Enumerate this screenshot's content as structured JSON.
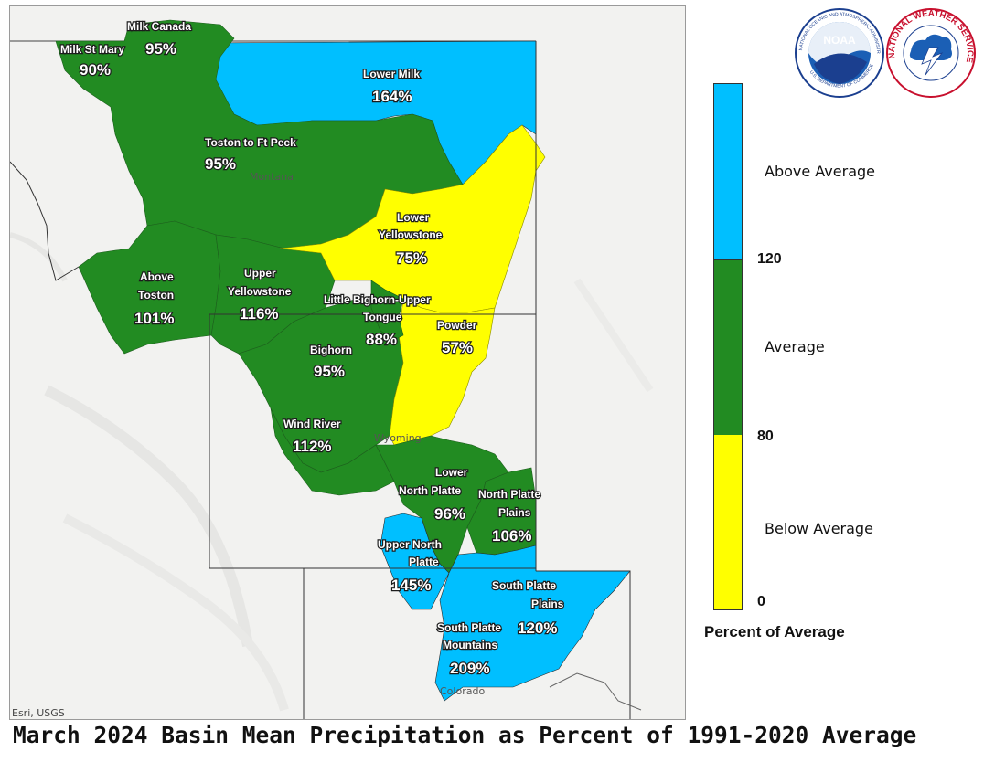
{
  "colors": {
    "above_average": "#00bfff",
    "average": "#228b22",
    "below_average": "#ffff00",
    "basemap": "#f1f1ef",
    "state_border": "#333333"
  },
  "basins": [
    {
      "id": "milk-canada",
      "name": "Milk Canada",
      "percent": "95%",
      "category": "average"
    },
    {
      "id": "milk-st-mary",
      "name": "Milk St Mary",
      "percent": "90%",
      "category": "average"
    },
    {
      "id": "lower-milk",
      "name": "Lower Milk",
      "percent": "164%",
      "category": "above_average"
    },
    {
      "id": "toston-to-ft-peck",
      "name": "Toston to Ft Peck",
      "percent": "95%",
      "category": "average"
    },
    {
      "id": "lower-yellowstone",
      "name": "Lower Yellowstone",
      "percent": "75%",
      "category": "below_average"
    },
    {
      "id": "above-toston",
      "name": "Above Toston",
      "percent": "101%",
      "category": "average"
    },
    {
      "id": "upper-yellowstone",
      "name": "Upper Yellowstone",
      "percent": "116%",
      "category": "average"
    },
    {
      "id": "little-bighorn-upper-tongue",
      "name": "Little Bighorn-Upper Tongue",
      "percent": "88%",
      "category": "average"
    },
    {
      "id": "powder",
      "name": "Powder",
      "percent": "57%",
      "category": "below_average"
    },
    {
      "id": "bighorn",
      "name": "Bighorn",
      "percent": "95%",
      "category": "average"
    },
    {
      "id": "wind-river",
      "name": "Wind River",
      "percent": "112%",
      "category": "average"
    },
    {
      "id": "lower-north-platte",
      "name": "Lower North Platte",
      "percent": "96%",
      "category": "average"
    },
    {
      "id": "north-platte-plains",
      "name": "North Platte Plains",
      "percent": "106%",
      "category": "average"
    },
    {
      "id": "upper-north-platte",
      "name": "Upper North Platte",
      "percent": "145%",
      "category": "above_average"
    },
    {
      "id": "south-platte-plains",
      "name": "South Platte Plains",
      "percent": "120%",
      "category": "above_average"
    },
    {
      "id": "south-platte-mountains",
      "name": "South Platte Mountains",
      "percent": "209%",
      "category": "above_average"
    }
  ],
  "labels": {
    "milk_canada_name": "Milk Canada",
    "milk_canada_pct": "95%",
    "milk_st_mary_name": "Milk St Mary",
    "milk_st_mary_pct": "90%",
    "lower_milk_name": "Lower Milk",
    "lower_milk_pct": "164%",
    "toston_name": "Toston to Ft Peck",
    "toston_pct": "95%",
    "lower_yellowstone_line1": "Lower",
    "lower_yellowstone_line2": "Yellowstone",
    "lower_yellowstone_pct": "75%",
    "above_toston_line1": "Above",
    "above_toston_line2": "Toston",
    "above_toston_pct": "101%",
    "upper_yellowstone_line1": "Upper",
    "upper_yellowstone_line2": "Yellowstone",
    "upper_yellowstone_pct": "116%",
    "little_bighorn_line1": "Little Bighorn-Upper",
    "little_bighorn_line2": "Tongue",
    "little_bighorn_pct": "88%",
    "powder_name": "Powder",
    "powder_pct": "57%",
    "bighorn_name": "Bighorn",
    "bighorn_pct": "95%",
    "wind_river_name": "Wind River",
    "wind_river_pct": "112%",
    "lower_north_platte_line1": "Lower",
    "lower_north_platte_line2": "North Platte",
    "lower_north_platte_pct": "96%",
    "north_platte_plains_line1": "North Platte",
    "north_platte_plains_line2": "Plains",
    "north_platte_plains_pct": "106%",
    "upper_north_platte_line1": "Upper North",
    "upper_north_platte_line2": "Platte",
    "upper_north_platte_pct": "145%",
    "south_platte_plains_line1": "South Platte",
    "south_platte_plains_line2": "Plains",
    "south_platte_plains_pct": "120%",
    "south_platte_mountains_line1": "South Platte",
    "south_platte_mountains_line2": "Mountains",
    "south_platte_mountains_pct": "209%"
  },
  "states": {
    "montana": "Montana",
    "wyoming": "Wyoming",
    "colorado": "Colorado"
  },
  "attribution": "Esri, USGS",
  "legend": {
    "above": "Above Average",
    "average": "Average",
    "below": "Below Average",
    "tick_120": "120",
    "tick_80": "80",
    "tick_0": "0",
    "title": "Percent of Average"
  },
  "logos": {
    "noaa_text": "NOAA",
    "noaa_ring": "NATIONAL OCEANIC AND ATMOSPHERIC ADMINISTRATION",
    "noaa_ring_bottom": "U.S. DEPARTMENT OF COMMERCE",
    "nws_ring": "NATIONAL WEATHER SERVICE"
  },
  "caption": "March 2024 Basin Mean Precipitation as Percent of 1991-2020 Average"
}
